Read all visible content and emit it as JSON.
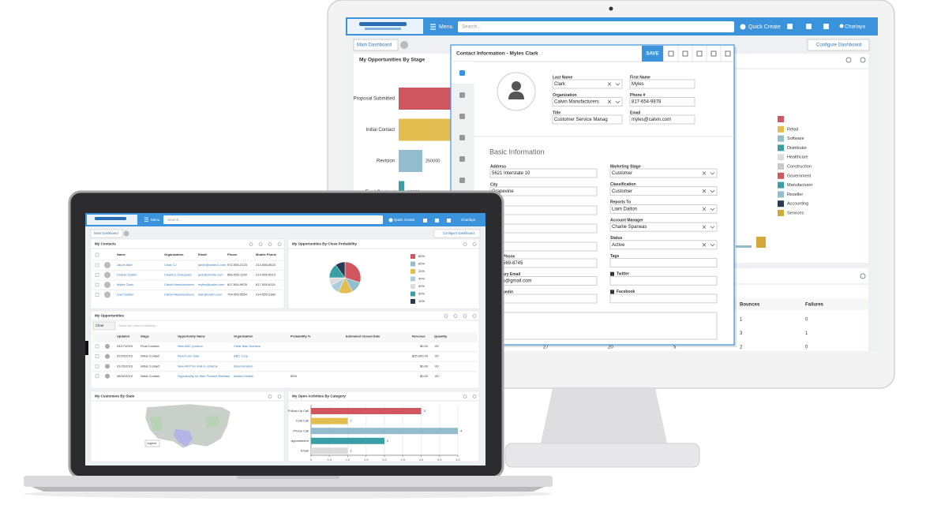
{
  "monitor": {
    "nav": {
      "menu": "Menu",
      "search": "Search...",
      "quick_create": "Quick Create",
      "user": "Charlaya"
    },
    "tabs": {
      "main": "Main Dashboard",
      "configure": "Configure Dashboard"
    },
    "stage_chart": {
      "title": "My Opportunities By Stage",
      "categories": [
        "Proposal Submitted",
        "Initial Contact",
        "Revision",
        "Final Contract"
      ],
      "values": [
        600000,
        550000,
        250000,
        60000
      ],
      "colors": [
        "#d0575f",
        "#e3bd50",
        "#93bccd",
        "#3a9ea5"
      ]
    },
    "industry_legend": [
      {
        "name": "Retail",
        "color": "#e3bd50"
      },
      {
        "name": "Software",
        "color": "#93bccd"
      },
      {
        "name": "Distributor",
        "color": "#3a9ea5"
      },
      {
        "name": "Healthcare",
        "color": "#dcdcdc"
      },
      {
        "name": "Construction",
        "color": "#c9c9c9"
      },
      {
        "name": "Government",
        "color": "#d0575f"
      },
      {
        "name": "Manufacturer",
        "color": "#3a9ea5"
      },
      {
        "name": "Reseller",
        "color": "#93bccd"
      },
      {
        "name": "Accounting",
        "color": "#283b55"
      },
      {
        "name": "Services",
        "color": "#d4a93a"
      }
    ],
    "contact": {
      "title": "Contact Information - Myles Clark",
      "save": "SAVE",
      "header_fields": [
        {
          "label": "Last Name",
          "value": "Clark"
        },
        {
          "label": "First Name",
          "value": "Myles"
        },
        {
          "label": "Organization",
          "value": "Calvin Manufacturers"
        },
        {
          "label": "Phone #",
          "value": "817-654-9878"
        },
        {
          "label": "Title",
          "value": "Customer Service Manag"
        },
        {
          "label": "Email",
          "value": "myles@calvin.com"
        }
      ],
      "section": "Basic Information",
      "left_fields": [
        {
          "label": "Address",
          "value": "5621 Interstate 10"
        },
        {
          "label": "City",
          "value": "Grapevine"
        }
      ],
      "partial_fields": [
        {
          "label": "Phone",
          "value": "569-8745"
        },
        {
          "label": "ary Email",
          "value": "s@gmail.com"
        },
        {
          "label": "kedin"
        }
      ],
      "right_fields": [
        {
          "label": "Marketing Stage",
          "value": "Customer"
        },
        {
          "label": "Classification",
          "value": "Customer"
        },
        {
          "label": "Reports To",
          "value": "Liam Dalton"
        },
        {
          "label": "Account Manager",
          "value": "Charlie Spaneas"
        },
        {
          "label": "Status",
          "value": "Active"
        },
        {
          "label": "Tags"
        },
        {
          "label": "Twitter"
        },
        {
          "label": "Facebook"
        }
      ]
    },
    "emails_table": {
      "headers": [
        "Bounces",
        "Failures"
      ],
      "rows": [
        [
          "1",
          "0"
        ],
        [
          "3",
          "1"
        ],
        [
          "2",
          "0"
        ]
      ],
      "totals": [
        "27",
        "20",
        "5"
      ]
    }
  },
  "laptop": {
    "nav": {
      "menu": "Menu",
      "search": "Search...",
      "quick_create": "Quick Create",
      "user": "Charlaya"
    },
    "tabs": {
      "main": "Main Dashboard",
      "configure": "Configure Dashboard"
    },
    "contacts": {
      "title": "My Contacts",
      "headers": [
        "Name",
        "Organization",
        "Email",
        "Phone",
        "Mobile Phone"
      ],
      "rows": [
        [
          "Jacob Alan",
          "Clear C2",
          "jacob@clearc2.com",
          "972-555-2123",
          "214-555-8523"
        ],
        [
          "Charlie Dalton",
          "Charlie's Delicacies",
          "jack@charlie.com",
          "866-555-1200",
          "214-555-5613"
        ],
        [
          "Myles Clark",
          "Calvin Manufacturers",
          "myles@calvin.com",
          "817-654-9878",
          "817-555-8115"
        ],
        [
          "Liam Dalton",
          "Calvin Manufacturers",
          "liam@calvin.com",
          "794-555-5654",
          "214-555-2380"
        ]
      ]
    },
    "close_probability": {
      "type": "pie",
      "title": "My Opportunities By Close Probability",
      "categories": [
        "80%",
        "60%",
        "20%",
        "40%",
        "50%",
        "90%",
        "10%"
      ],
      "values": [
        30,
        12,
        15,
        10,
        8,
        15,
        10
      ],
      "colors": [
        "#d0575f",
        "#93bccd",
        "#e3bd50",
        "#a9cfdc",
        "#dcdcdc",
        "#3a9ea5",
        "#283b55"
      ]
    },
    "opportunities": {
      "title": "My Opportunities",
      "clear": "Clear",
      "filter": "Show into rows containing...",
      "headers": [
        "Updated",
        "Stage",
        "Opportunity Name",
        "Organization",
        "Probability %",
        "Estimated Closed Date",
        "Revenue",
        "Quantity"
      ],
      "rows": [
        [
          "04/17/2019",
          "Final Contact",
          "New ABC product",
          "Clear Man Solution",
          "$0.00",
          ".00"
        ],
        [
          "02/20/2019",
          "Initial Contact",
          "New Form Sale",
          "ABC Corp",
          "$25,000.00",
          ".00"
        ],
        [
          "01/20/2019",
          "Initial Contact",
          "New RFP for mail-in scheme",
          "Ideal Vendors",
          "$0.00",
          ".00"
        ],
        [
          "08/30/2019",
          "Initial Contact",
          "Opportunity for Man Product Release",
          "Aleanz Mobile",
          "80%",
          "$0.00",
          ".00"
        ]
      ]
    },
    "customers_by_state": {
      "title": "My Customers By State",
      "legend": "Legend"
    },
    "activities": {
      "type": "bar",
      "title": "My Open Activities By Category",
      "categories": [
        "Follow-Up Call",
        "Cold Call",
        "Phone Call",
        "Appointment",
        "Email"
      ],
      "values": [
        3,
        1,
        4,
        2,
        1
      ],
      "colors": [
        "#d0575f",
        "#e3bd50",
        "#93bccd",
        "#3a9ea5",
        "#dcdcdc"
      ],
      "xlim": [
        0,
        4
      ],
      "xticks": [
        0,
        0.5,
        {
          "value": 1,
          "label": "1.0"
        },
        1.5,
        {
          "value": 2,
          "label": "2.0"
        },
        2.5,
        {
          "value": 3,
          "label": "3.0"
        },
        3.5,
        {
          "value": 4,
          "label": "4.0"
        }
      ]
    }
  }
}
